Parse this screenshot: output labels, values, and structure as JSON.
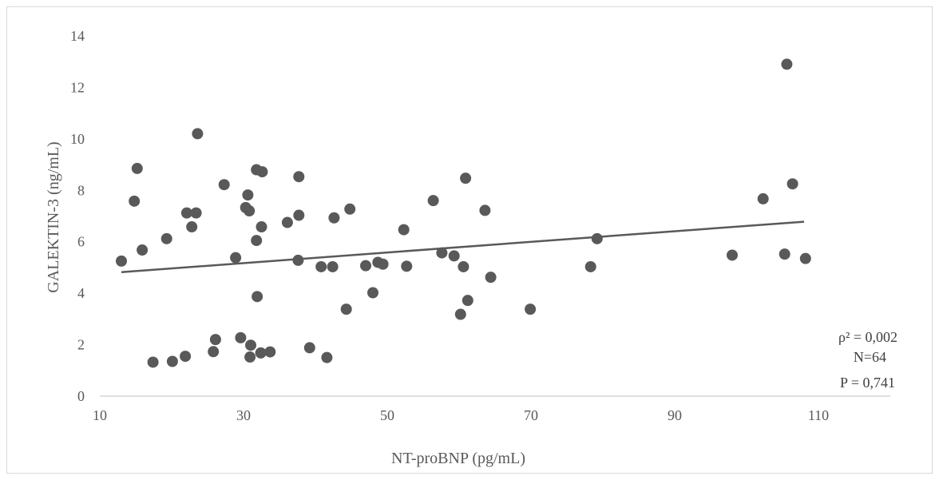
{
  "chart_data": {
    "type": "scatter",
    "xlabel": "NT-proBNP (pg/mL)",
    "ylabel": "GALEKTIN-3 (ng/mL)",
    "xlim": [
      10,
      120
    ],
    "ylim": [
      0,
      14
    ],
    "x_ticks": [
      10,
      30,
      50,
      70,
      90,
      110
    ],
    "y_ticks": [
      0,
      2,
      4,
      6,
      8,
      10,
      12,
      14
    ],
    "grid": false,
    "marker_color": "#595959",
    "trendline": {
      "x": [
        13,
        108
      ],
      "y": [
        4.82,
        6.78
      ],
      "color": "#595959"
    },
    "annotations": [
      "ρ² = 0,002",
      "N=64",
      "P = 0,741"
    ],
    "points": [
      [
        13.0,
        5.25
      ],
      [
        14.8,
        7.58
      ],
      [
        15.2,
        8.85
      ],
      [
        15.9,
        5.68
      ],
      [
        17.4,
        1.32
      ],
      [
        19.3,
        6.12
      ],
      [
        20.1,
        1.35
      ],
      [
        21.9,
        1.55
      ],
      [
        22.1,
        7.12
      ],
      [
        22.8,
        6.58
      ],
      [
        23.4,
        7.12
      ],
      [
        23.6,
        10.2
      ],
      [
        25.8,
        1.73
      ],
      [
        26.1,
        2.2
      ],
      [
        27.3,
        8.22
      ],
      [
        28.9,
        5.38
      ],
      [
        29.6,
        2.27
      ],
      [
        30.3,
        7.33
      ],
      [
        30.6,
        7.82
      ],
      [
        30.8,
        7.2
      ],
      [
        30.9,
        1.52
      ],
      [
        31.0,
        1.98
      ],
      [
        31.8,
        6.05
      ],
      [
        31.8,
        8.8
      ],
      [
        31.9,
        3.87
      ],
      [
        32.4,
        1.68
      ],
      [
        32.5,
        6.58
      ],
      [
        32.6,
        8.72
      ],
      [
        33.7,
        1.72
      ],
      [
        36.1,
        6.75
      ],
      [
        37.6,
        5.28
      ],
      [
        37.7,
        8.53
      ],
      [
        37.7,
        7.03
      ],
      [
        39.2,
        1.88
      ],
      [
        40.8,
        5.03
      ],
      [
        41.6,
        1.5
      ],
      [
        42.4,
        5.03
      ],
      [
        42.6,
        6.93
      ],
      [
        44.3,
        3.38
      ],
      [
        44.8,
        7.27
      ],
      [
        47.0,
        5.07
      ],
      [
        48.0,
        4.02
      ],
      [
        48.7,
        5.2
      ],
      [
        49.4,
        5.13
      ],
      [
        52.3,
        6.47
      ],
      [
        52.7,
        5.05
      ],
      [
        56.4,
        7.6
      ],
      [
        57.6,
        5.57
      ],
      [
        59.3,
        5.45
      ],
      [
        60.2,
        3.18
      ],
      [
        60.6,
        5.03
      ],
      [
        60.9,
        8.47
      ],
      [
        61.2,
        3.72
      ],
      [
        63.6,
        7.22
      ],
      [
        64.4,
        4.62
      ],
      [
        69.9,
        3.38
      ],
      [
        78.3,
        5.03
      ],
      [
        79.2,
        6.12
      ],
      [
        98.0,
        5.48
      ],
      [
        102.3,
        7.67
      ],
      [
        105.3,
        5.52
      ],
      [
        105.6,
        12.9
      ],
      [
        106.4,
        8.25
      ],
      [
        108.2,
        5.35
      ]
    ]
  }
}
